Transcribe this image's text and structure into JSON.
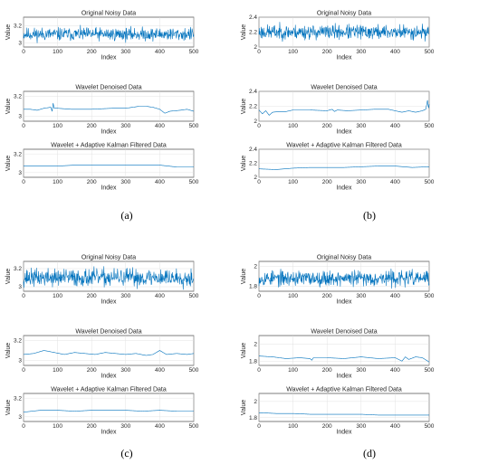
{
  "colors": {
    "series": "#0072BD"
  },
  "captions": [
    "(a)",
    "(b)",
    "(c)",
    "(d)"
  ],
  "chart_data": [
    {
      "panel": "a",
      "row": 0,
      "type": "line",
      "title": "Original Noisy Data",
      "xlabel": "Index",
      "ylabel": "Value",
      "xlim": [
        0,
        500
      ],
      "ylim": [
        2.95,
        3.3
      ],
      "xticks": [
        0,
        100,
        200,
        300,
        400,
        500
      ],
      "yticks": [
        3,
        3.2
      ],
      "ytick_labels": [
        "3",
        "3.2"
      ],
      "series": [
        {
          "kind": "noise",
          "level": 3.1,
          "amplitude": 0.07,
          "seed": 11
        }
      ]
    },
    {
      "panel": "a",
      "row": 1,
      "type": "line",
      "title": "Wavelet Denoised Data",
      "xlabel": "Index",
      "ylabel": "Value",
      "xlim": [
        0,
        500
      ],
      "ylim": [
        2.95,
        3.25
      ],
      "xticks": [
        0,
        100,
        200,
        300,
        400,
        500
      ],
      "yticks": [
        3,
        3.2
      ],
      "ytick_labels": [
        "3",
        "3.2"
      ],
      "series": [
        {
          "kind": "points",
          "x": [
            0,
            20,
            40,
            60,
            80,
            84,
            87,
            90,
            100,
            140,
            200,
            260,
            300,
            340,
            360,
            380,
            400,
            415,
            430,
            460,
            480,
            500
          ],
          "y": [
            3.07,
            3.07,
            3.06,
            3.08,
            3.09,
            3.05,
            3.13,
            3.08,
            3.08,
            3.07,
            3.07,
            3.08,
            3.08,
            3.1,
            3.1,
            3.09,
            3.07,
            3.03,
            3.05,
            3.06,
            3.07,
            3.05
          ]
        }
      ]
    },
    {
      "panel": "a",
      "row": 2,
      "type": "line",
      "title": "Wavelet + Adaptive Kalman Filtered Data",
      "xlabel": "Index",
      "ylabel": "Value",
      "xlim": [
        0,
        500
      ],
      "ylim": [
        2.95,
        3.25
      ],
      "xticks": [
        0,
        100,
        200,
        300,
        400,
        500
      ],
      "yticks": [
        3,
        3.2
      ],
      "ytick_labels": [
        "3",
        "3.2"
      ],
      "series": [
        {
          "kind": "points",
          "x": [
            0,
            50,
            100,
            150,
            200,
            250,
            300,
            350,
            400,
            450,
            500
          ],
          "y": [
            3.07,
            3.07,
            3.07,
            3.08,
            3.08,
            3.08,
            3.08,
            3.08,
            3.08,
            3.06,
            3.06
          ]
        }
      ]
    },
    {
      "panel": "b",
      "row": 0,
      "type": "line",
      "title": "Original Noisy Data",
      "xlabel": "Index",
      "ylabel": "Value",
      "xlim": [
        0,
        500
      ],
      "ylim": [
        2.0,
        2.4
      ],
      "xticks": [
        0,
        100,
        200,
        300,
        400,
        500
      ],
      "yticks": [
        2,
        2.2,
        2.4
      ],
      "ytick_labels": [
        "2",
        "2.2",
        "2.4"
      ],
      "series": [
        {
          "kind": "noise",
          "level": 2.2,
          "amplitude": 0.09,
          "seed": 23
        }
      ]
    },
    {
      "panel": "b",
      "row": 1,
      "type": "line",
      "title": "Wavelet Denoised Data",
      "xlabel": "Index",
      "ylabel": "Value",
      "xlim": [
        0,
        500
      ],
      "ylim": [
        2.0,
        2.4
      ],
      "xticks": [
        0,
        100,
        200,
        300,
        400,
        500
      ],
      "yticks": [
        2,
        2.2,
        2.4
      ],
      "ytick_labels": [
        "2",
        "2.2",
        "2.4"
      ],
      "series": [
        {
          "kind": "points",
          "x": [
            0,
            10,
            20,
            30,
            40,
            60,
            80,
            100,
            150,
            200,
            215,
            222,
            230,
            260,
            300,
            340,
            380,
            400,
            420,
            440,
            460,
            480,
            490,
            495,
            498,
            500
          ],
          "y": [
            2.15,
            2.1,
            2.14,
            2.08,
            2.12,
            2.13,
            2.13,
            2.15,
            2.15,
            2.14,
            2.16,
            2.13,
            2.15,
            2.14,
            2.15,
            2.16,
            2.16,
            2.14,
            2.12,
            2.14,
            2.12,
            2.14,
            2.16,
            2.28,
            2.18,
            2.23
          ]
        }
      ]
    },
    {
      "panel": "b",
      "row": 2,
      "type": "line",
      "title": "Wavelet + Adaptive Kalman Filtered Data",
      "xlabel": "Index",
      "ylabel": "Value",
      "xlim": [
        0,
        500
      ],
      "ylim": [
        2.0,
        2.4
      ],
      "xticks": [
        0,
        100,
        200,
        300,
        400,
        500
      ],
      "yticks": [
        2,
        2.2,
        2.4
      ],
      "ytick_labels": [
        "2",
        "2.2",
        "2.4"
      ],
      "series": [
        {
          "kind": "points",
          "x": [
            0,
            50,
            100,
            150,
            200,
            250,
            300,
            350,
            400,
            450,
            500
          ],
          "y": [
            2.12,
            2.11,
            2.13,
            2.14,
            2.14,
            2.14,
            2.15,
            2.16,
            2.16,
            2.14,
            2.15
          ]
        }
      ]
    },
    {
      "panel": "c",
      "row": 0,
      "type": "line",
      "title": "Original Noisy Data",
      "xlabel": "Index",
      "ylabel": "Value",
      "xlim": [
        0,
        500
      ],
      "ylim": [
        2.95,
        3.28
      ],
      "xticks": [
        0,
        100,
        200,
        300,
        400,
        500
      ],
      "yticks": [
        3,
        3.2
      ],
      "ytick_labels": [
        "3",
        "3.2"
      ],
      "series": [
        {
          "kind": "noise",
          "level": 3.1,
          "amplitude": 0.09,
          "seed": 37
        }
      ]
    },
    {
      "panel": "c",
      "row": 1,
      "type": "line",
      "title": "Wavelet Denoised Data",
      "xlabel": "Index",
      "ylabel": "Value",
      "xlim": [
        0,
        500
      ],
      "ylim": [
        2.95,
        3.25
      ],
      "xticks": [
        0,
        100,
        200,
        300,
        400,
        500
      ],
      "yticks": [
        3,
        3.2
      ],
      "ytick_labels": [
        "3",
        "3.2"
      ],
      "series": [
        {
          "kind": "points",
          "x": [
            0,
            30,
            60,
            90,
            120,
            150,
            180,
            210,
            240,
            270,
            300,
            330,
            360,
            380,
            400,
            420,
            450,
            480,
            500
          ],
          "y": [
            3.06,
            3.07,
            3.1,
            3.08,
            3.06,
            3.08,
            3.07,
            3.06,
            3.08,
            3.07,
            3.06,
            3.07,
            3.05,
            3.06,
            3.1,
            3.06,
            3.07,
            3.06,
            3.07
          ]
        }
      ]
    },
    {
      "panel": "c",
      "row": 2,
      "type": "line",
      "title": "Wavelet + Adaptive Kalman Filtered Data",
      "xlabel": "Index",
      "ylabel": "Value",
      "xlim": [
        0,
        500
      ],
      "ylim": [
        2.95,
        3.25
      ],
      "xticks": [
        0,
        100,
        200,
        300,
        400,
        500
      ],
      "yticks": [
        3,
        3.2
      ],
      "ytick_labels": [
        "3",
        "3.2"
      ],
      "series": [
        {
          "kind": "points",
          "x": [
            0,
            50,
            100,
            150,
            200,
            250,
            300,
            350,
            400,
            450,
            500
          ],
          "y": [
            3.05,
            3.07,
            3.07,
            3.06,
            3.07,
            3.07,
            3.07,
            3.06,
            3.07,
            3.06,
            3.06
          ]
        }
      ]
    },
    {
      "panel": "d",
      "row": 0,
      "type": "line",
      "title": "Original Noisy Data",
      "xlabel": "Index",
      "ylabel": "Value",
      "xlim": [
        0,
        500
      ],
      "ylim": [
        1.75,
        2.05
      ],
      "xticks": [
        0,
        100,
        200,
        300,
        400,
        500
      ],
      "yticks": [
        1.8,
        2
      ],
      "ytick_labels": [
        "1.8",
        "2"
      ],
      "series": [
        {
          "kind": "noise",
          "level": 1.88,
          "amplitude": 0.07,
          "seed": 53
        }
      ]
    },
    {
      "panel": "d",
      "row": 1,
      "type": "line",
      "title": "Wavelet Denoised Data",
      "xlabel": "Index",
      "ylabel": "Value",
      "xlim": [
        0,
        500
      ],
      "ylim": [
        1.75,
        2.1
      ],
      "xticks": [
        0,
        100,
        200,
        300,
        400,
        500
      ],
      "yticks": [
        1.8,
        2
      ],
      "ytick_labels": [
        "1.8",
        "2"
      ],
      "series": [
        {
          "kind": "points",
          "x": [
            0,
            40,
            80,
            120,
            150,
            155,
            160,
            200,
            250,
            300,
            350,
            400,
            420,
            430,
            440,
            460,
            480,
            500
          ],
          "y": [
            1.86,
            1.85,
            1.83,
            1.84,
            1.83,
            1.81,
            1.84,
            1.84,
            1.83,
            1.85,
            1.83,
            1.84,
            1.8,
            1.85,
            1.82,
            1.85,
            1.84,
            1.79
          ]
        }
      ]
    },
    {
      "panel": "d",
      "row": 2,
      "type": "line",
      "title": "Wavelet + Adaptive Kalman Filtered Data",
      "xlabel": "Index",
      "ylabel": "Value",
      "xlim": [
        0,
        500
      ],
      "ylim": [
        1.75,
        2.1
      ],
      "xticks": [
        0,
        100,
        200,
        300,
        400,
        500
      ],
      "yticks": [
        1.8,
        2
      ],
      "ytick_labels": [
        "1.8",
        "2"
      ],
      "series": [
        {
          "kind": "points",
          "x": [
            0,
            50,
            100,
            150,
            200,
            250,
            300,
            350,
            400,
            450,
            500
          ],
          "y": [
            1.86,
            1.85,
            1.85,
            1.84,
            1.84,
            1.84,
            1.84,
            1.83,
            1.83,
            1.83,
            1.83
          ]
        }
      ]
    }
  ]
}
